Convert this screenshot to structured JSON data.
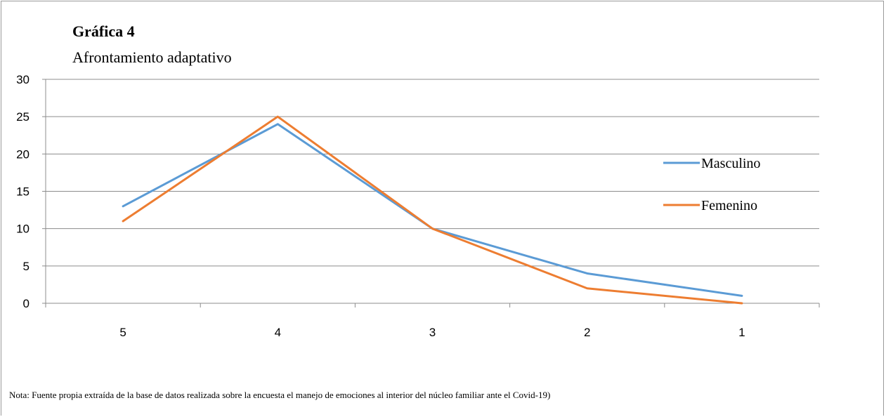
{
  "chart_data": {
    "type": "line",
    "title": "Gráfica 4",
    "subtitle": "Afrontamiento adaptativo",
    "categories": [
      "5",
      "4",
      "3",
      "2",
      "1"
    ],
    "series": [
      {
        "name": "Masculino",
        "values": [
          13,
          24,
          10,
          4,
          1
        ],
        "color": "#5b9bd5"
      },
      {
        "name": "Femenino",
        "values": [
          11,
          25,
          10,
          2,
          0
        ],
        "color": "#ed7d31"
      }
    ],
    "ylim": [
      0,
      30
    ],
    "yticks": [
      0,
      5,
      10,
      15,
      20,
      25,
      30
    ],
    "grid": true,
    "legend_position": "right"
  },
  "note": "Nota: Fuente propia extraída de la base de datos realizada sobre la encuesta el manejo de emociones al interior del núcleo familiar ante el Covid-19)"
}
